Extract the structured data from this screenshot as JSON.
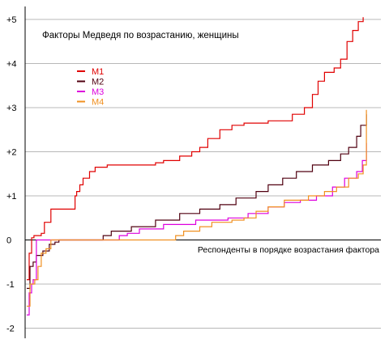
{
  "chart_data": {
    "type": "line",
    "title": "Факторы Медведя по возрастанию, женщины",
    "xlabel": "Респонденты в порядке возрастания фактора",
    "ylabel": "",
    "xlim": [
      0,
      430
    ],
    "ylim": [
      -2.15,
      5.35
    ],
    "yticks": [
      -2,
      -1,
      0,
      1,
      2,
      3,
      4,
      5
    ],
    "ytick_labels": [
      "-2",
      "-1",
      "0",
      "+1",
      "+2",
      "+3",
      "+4",
      "+5"
    ],
    "grid": "horizontal",
    "legend": "upper-left",
    "series": [
      {
        "name": "M1",
        "color": "#e00000",
        "points": [
          [
            0,
            -0.9
          ],
          [
            3,
            -0.3
          ],
          [
            6,
            0.05
          ],
          [
            9,
            0.1
          ],
          [
            18,
            0.15
          ],
          [
            22,
            0.4
          ],
          [
            30,
            0.7
          ],
          [
            56,
            0.7
          ],
          [
            60,
            1.0
          ],
          [
            62,
            1.1
          ],
          [
            66,
            1.25
          ],
          [
            70,
            1.4
          ],
          [
            78,
            1.55
          ],
          [
            85,
            1.65
          ],
          [
            100,
            1.7
          ],
          [
            160,
            1.75
          ],
          [
            170,
            1.8
          ],
          [
            190,
            1.9
          ],
          [
            205,
            2.0
          ],
          [
            215,
            2.1
          ],
          [
            225,
            2.3
          ],
          [
            240,
            2.5
          ],
          [
            255,
            2.6
          ],
          [
            270,
            2.65
          ],
          [
            300,
            2.7
          ],
          [
            330,
            2.85
          ],
          [
            345,
            3.0
          ],
          [
            355,
            3.3
          ],
          [
            362,
            3.6
          ],
          [
            370,
            3.8
          ],
          [
            382,
            3.9
          ],
          [
            390,
            4.1
          ],
          [
            398,
            4.5
          ],
          [
            405,
            4.75
          ],
          [
            412,
            4.95
          ],
          [
            418,
            5.05
          ]
        ]
      },
      {
        "name": "M2",
        "color": "#500010",
        "points": [
          [
            0,
            -1.1
          ],
          [
            4,
            -0.6
          ],
          [
            8,
            -0.5
          ],
          [
            12,
            -0.35
          ],
          [
            20,
            -0.25
          ],
          [
            28,
            -0.1
          ],
          [
            35,
            -0.05
          ],
          [
            40,
            0.0
          ],
          [
            85,
            0.0
          ],
          [
            95,
            0.1
          ],
          [
            105,
            0.2
          ],
          [
            130,
            0.3
          ],
          [
            160,
            0.45
          ],
          [
            190,
            0.6
          ],
          [
            215,
            0.7
          ],
          [
            240,
            0.8
          ],
          [
            260,
            0.95
          ],
          [
            285,
            1.1
          ],
          [
            300,
            1.25
          ],
          [
            318,
            1.4
          ],
          [
            335,
            1.55
          ],
          [
            355,
            1.7
          ],
          [
            375,
            1.8
          ],
          [
            390,
            1.95
          ],
          [
            400,
            2.1
          ],
          [
            410,
            2.35
          ],
          [
            415,
            2.6
          ],
          [
            422,
            2.85
          ]
        ]
      },
      {
        "name": "M3",
        "color": "#dd00dd",
        "points": [
          [
            0,
            -1.7
          ],
          [
            3,
            -1.2
          ],
          [
            6,
            -1.0
          ],
          [
            8,
            -0.9
          ],
          [
            10,
            -0.9
          ],
          [
            12,
            0.0
          ],
          [
            110,
            0.0
          ],
          [
            115,
            0.1
          ],
          [
            125,
            0.15
          ],
          [
            140,
            0.25
          ],
          [
            170,
            0.35
          ],
          [
            210,
            0.45
          ],
          [
            250,
            0.5
          ],
          [
            275,
            0.6
          ],
          [
            300,
            0.75
          ],
          [
            320,
            0.85
          ],
          [
            340,
            0.9
          ],
          [
            360,
            1.0
          ],
          [
            380,
            1.2
          ],
          [
            395,
            1.4
          ],
          [
            410,
            1.55
          ],
          [
            417,
            1.8
          ],
          [
            422,
            2.2
          ]
        ]
      },
      {
        "name": "M4",
        "color": "#f09020",
        "points": [
          [
            0,
            -1.5
          ],
          [
            4,
            -1.0
          ],
          [
            10,
            -0.9
          ],
          [
            14,
            -0.6
          ],
          [
            18,
            -0.3
          ],
          [
            24,
            -0.2
          ],
          [
            30,
            0.0
          ],
          [
            175,
            0.0
          ],
          [
            185,
            0.1
          ],
          [
            195,
            0.2
          ],
          [
            215,
            0.3
          ],
          [
            230,
            0.4
          ],
          [
            255,
            0.45
          ],
          [
            270,
            0.5
          ],
          [
            285,
            0.65
          ],
          [
            300,
            0.75
          ],
          [
            320,
            0.9
          ],
          [
            350,
            1.0
          ],
          [
            370,
            1.1
          ],
          [
            385,
            1.2
          ],
          [
            400,
            1.4
          ],
          [
            412,
            1.5
          ],
          [
            418,
            1.7
          ],
          [
            422,
            2.95
          ]
        ]
      }
    ]
  }
}
